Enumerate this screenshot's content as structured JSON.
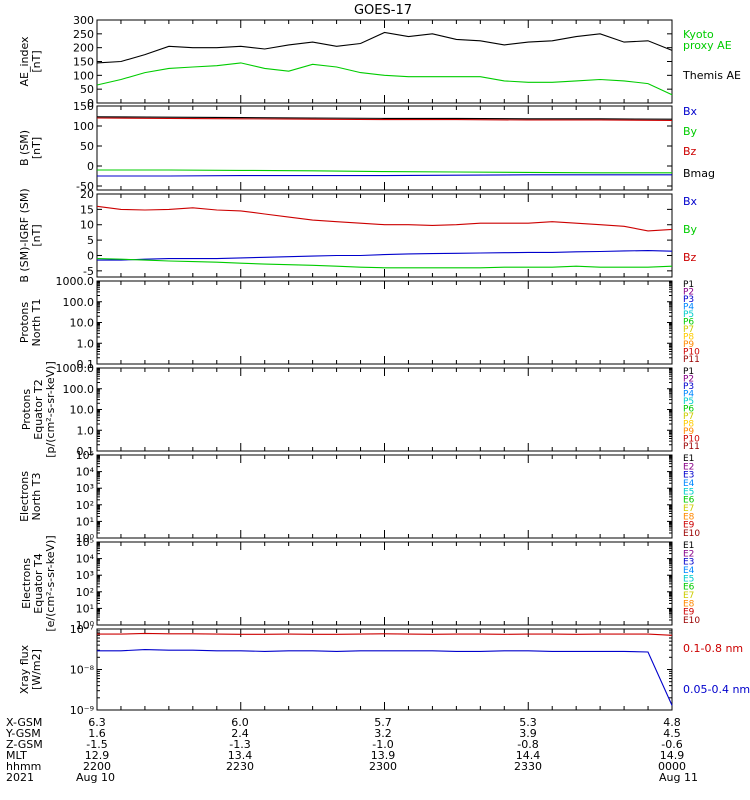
{
  "title": "GOES-17",
  "panels": [
    {
      "id": "ae",
      "ylabel": [
        "AE_index",
        "[nT]"
      ],
      "scale": "linear",
      "ylim": [
        0,
        300
      ],
      "ticks": [
        0,
        50,
        100,
        150,
        200,
        250,
        300
      ],
      "tick_labels": [
        "0",
        "50",
        "100",
        "150",
        "200",
        "250",
        "300"
      ],
      "legend": [
        {
          "text": "Kyoto",
          "color": "#00cc00"
        },
        {
          "text": "proxy AE",
          "color": "#00cc00"
        },
        {
          "text": "Themis AE",
          "color": "#000000"
        }
      ]
    },
    {
      "id": "bsm",
      "ylabel": [
        "B (SM)",
        "[nT]"
      ],
      "scale": "linear",
      "ylim": [
        -60,
        150
      ],
      "ticks": [
        -50,
        0,
        50,
        100,
        150
      ],
      "tick_labels": [
        "-50",
        "0",
        "50",
        "100",
        "150"
      ],
      "legend": [
        {
          "text": "Bx",
          "color": "#0000cc"
        },
        {
          "text": "By",
          "color": "#00cc00"
        },
        {
          "text": "Bz",
          "color": "#cc0000"
        },
        {
          "text": "Bmag",
          "color": "#000000"
        }
      ]
    },
    {
      "id": "bigrf",
      "ylabel": [
        "B (SM)-IGRF (SM)",
        "[nT]"
      ],
      "scale": "linear",
      "ylim": [
        -7,
        20
      ],
      "ticks": [
        -5,
        0,
        5,
        10,
        15,
        20
      ],
      "tick_labels": [
        "-5",
        "0",
        "5",
        "10",
        "15",
        "20"
      ],
      "legend": [
        {
          "text": "Bx",
          "color": "#0000cc"
        },
        {
          "text": "By",
          "color": "#00cc00"
        },
        {
          "text": "Bz",
          "color": "#cc0000"
        }
      ]
    },
    {
      "id": "protons_t1",
      "ylabel": [
        "Protons",
        "North T1"
      ],
      "scale": "log",
      "ylim": [
        0.1,
        1000
      ],
      "ticks": [
        0.1,
        1,
        10,
        100,
        1000
      ],
      "tick_labels": [
        "0.1",
        "1.0",
        "10.0",
        "100.0",
        "1000.0"
      ],
      "legend": [
        {
          "text": "P1",
          "color": "#000000"
        },
        {
          "text": "P2",
          "color": "#880088"
        },
        {
          "text": "P3",
          "color": "#0000cc"
        },
        {
          "text": "P4",
          "color": "#0088ff"
        },
        {
          "text": "P5",
          "color": "#00cccc"
        },
        {
          "text": "P6",
          "color": "#00cc00"
        },
        {
          "text": "P7",
          "color": "#cccc00"
        },
        {
          "text": "P8",
          "color": "#ffcc00"
        },
        {
          "text": "P9",
          "color": "#ff8800"
        },
        {
          "text": "P10",
          "color": "#cc0000"
        },
        {
          "text": "P11",
          "color": "#990000"
        }
      ]
    },
    {
      "id": "protons_t2",
      "ylabel": [
        "Protons",
        "Equator T2",
        "[p/(cm²-s-sr-keV)]"
      ],
      "scale": "log",
      "ylim": [
        0.1,
        1000
      ],
      "ticks": [
        0.1,
        1,
        10,
        100,
        1000
      ],
      "tick_labels": [
        "0.1",
        "1.0",
        "10.0",
        "100.0",
        "1000.0"
      ],
      "legend": [
        {
          "text": "P1",
          "color": "#000000"
        },
        {
          "text": "P2",
          "color": "#880088"
        },
        {
          "text": "P3",
          "color": "#0000cc"
        },
        {
          "text": "P4",
          "color": "#0088ff"
        },
        {
          "text": "P5",
          "color": "#00cccc"
        },
        {
          "text": "P6",
          "color": "#00cc00"
        },
        {
          "text": "P7",
          "color": "#cccc00"
        },
        {
          "text": "P8",
          "color": "#ffcc00"
        },
        {
          "text": "P9",
          "color": "#ff8800"
        },
        {
          "text": "P10",
          "color": "#cc0000"
        },
        {
          "text": "P11",
          "color": "#990000"
        }
      ]
    },
    {
      "id": "electrons_t3",
      "ylabel": [
        "Electrons",
        "North T3"
      ],
      "scale": "log",
      "ylim": [
        1,
        100000
      ],
      "ticks": [
        1,
        10,
        100,
        1000,
        10000,
        100000
      ],
      "tick_labels": [
        "10⁰",
        "10¹",
        "10²",
        "10³",
        "10⁴",
        "10⁵"
      ],
      "legend": [
        {
          "text": "E1",
          "color": "#000000"
        },
        {
          "text": "E2",
          "color": "#880088"
        },
        {
          "text": "E3",
          "color": "#0000cc"
        },
        {
          "text": "E4",
          "color": "#0088ff"
        },
        {
          "text": "E5",
          "color": "#00cccc"
        },
        {
          "text": "E6",
          "color": "#00cc00"
        },
        {
          "text": "E7",
          "color": "#cccc00"
        },
        {
          "text": "E8",
          "color": "#ff8800"
        },
        {
          "text": "E9",
          "color": "#cc0000"
        },
        {
          "text": "E10",
          "color": "#990000"
        }
      ]
    },
    {
      "id": "electrons_t4",
      "ylabel": [
        "Electrons",
        "Equator T4",
        "[e/(cm²-s-sr-keV)]"
      ],
      "scale": "log",
      "ylim": [
        1,
        100000
      ],
      "ticks": [
        1,
        10,
        100,
        1000,
        10000,
        100000
      ],
      "tick_labels": [
        "10⁰",
        "10¹",
        "10²",
        "10³",
        "10⁴",
        "10⁵"
      ],
      "legend": [
        {
          "text": "E1",
          "color": "#000000"
        },
        {
          "text": "E2",
          "color": "#880088"
        },
        {
          "text": "E3",
          "color": "#0000cc"
        },
        {
          "text": "E4",
          "color": "#0088ff"
        },
        {
          "text": "E5",
          "color": "#00cccc"
        },
        {
          "text": "E6",
          "color": "#00cc00"
        },
        {
          "text": "E7",
          "color": "#cccc00"
        },
        {
          "text": "E8",
          "color": "#ff8800"
        },
        {
          "text": "E9",
          "color": "#cc0000"
        },
        {
          "text": "E10",
          "color": "#990000"
        }
      ]
    },
    {
      "id": "xray",
      "ylabel": [
        "Xray flux",
        "[W/m2]"
      ],
      "scale": "log",
      "ylim": [
        1e-09,
        1e-07
      ],
      "ticks": [
        1e-09,
        1e-08,
        1e-07
      ],
      "tick_labels": [
        "10⁻⁹",
        "10⁻⁸",
        "10⁻⁷"
      ],
      "legend": [
        {
          "text": "0.1-0.8 nm",
          "color": "#cc0000"
        },
        {
          "text": "0.05-0.4 nm",
          "color": "#0000cc"
        }
      ]
    }
  ],
  "chart_data": [
    {
      "type": "line",
      "panel": "ae",
      "x": [
        "2200",
        "2205",
        "2210",
        "2215",
        "2220",
        "2225",
        "2230",
        "2235",
        "2240",
        "2245",
        "2250",
        "2255",
        "2300",
        "2305",
        "2310",
        "2315",
        "2320",
        "2325",
        "2330",
        "2335",
        "2340",
        "2345",
        "2350",
        "2355",
        "0000"
      ],
      "series": [
        {
          "name": "Themis AE",
          "color": "#000000",
          "values": [
            145,
            150,
            175,
            205,
            200,
            200,
            205,
            195,
            210,
            220,
            205,
            215,
            255,
            240,
            250,
            230,
            225,
            210,
            220,
            225,
            240,
            250,
            220,
            225,
            190
          ]
        },
        {
          "name": "Kyoto proxy AE",
          "color": "#00cc00",
          "values": [
            65,
            85,
            110,
            125,
            130,
            135,
            145,
            125,
            115,
            140,
            130,
            110,
            100,
            95,
            95,
            95,
            95,
            80,
            75,
            75,
            80,
            85,
            80,
            70,
            30
          ]
        }
      ]
    },
    {
      "type": "line",
      "panel": "bsm",
      "x": [
        "2200",
        "2215",
        "2230",
        "2245",
        "2300",
        "2315",
        "2330",
        "2345",
        "0000"
      ],
      "series": [
        {
          "name": "Bx",
          "color": "#0000cc",
          "values": [
            -25,
            -25,
            -24,
            -24,
            -24,
            -23,
            -22,
            -22,
            -22
          ]
        },
        {
          "name": "By",
          "color": "#00cc00",
          "values": [
            -10,
            -10,
            -11,
            -12,
            -14,
            -15,
            -16,
            -17,
            -17
          ]
        },
        {
          "name": "Bz",
          "color": "#cc0000",
          "values": [
            120,
            119,
            118,
            117,
            116,
            116,
            115,
            115,
            114
          ]
        },
        {
          "name": "Bmag",
          "color": "#000000",
          "values": [
            123,
            122,
            121,
            120,
            119,
            119,
            118,
            118,
            117
          ]
        }
      ]
    },
    {
      "type": "line",
      "panel": "bigrf",
      "x": [
        "2200",
        "2205",
        "2210",
        "2215",
        "2220",
        "2225",
        "2230",
        "2235",
        "2240",
        "2245",
        "2250",
        "2255",
        "2300",
        "2305",
        "2310",
        "2315",
        "2320",
        "2325",
        "2330",
        "2335",
        "2340",
        "2345",
        "2350",
        "2355",
        "0000"
      ],
      "series": [
        {
          "name": "Bx",
          "color": "#0000cc",
          "values": [
            -1.5,
            -1.5,
            -1.2,
            -1.0,
            -1.0,
            -1.0,
            -0.8,
            -0.6,
            -0.4,
            -0.2,
            0.0,
            0.0,
            0.3,
            0.5,
            0.6,
            0.7,
            0.8,
            0.9,
            1.0,
            1.0,
            1.2,
            1.3,
            1.5,
            1.6,
            1.4
          ]
        },
        {
          "name": "By",
          "color": "#00cc00",
          "values": [
            -1.0,
            -1.2,
            -1.5,
            -1.8,
            -2.0,
            -2.2,
            -2.5,
            -2.8,
            -3.0,
            -3.2,
            -3.5,
            -3.8,
            -4.0,
            -4.0,
            -4.0,
            -4.0,
            -4.0,
            -3.8,
            -3.8,
            -3.8,
            -3.5,
            -3.8,
            -3.8,
            -3.8,
            -3.5
          ]
        },
        {
          "name": "Bz",
          "color": "#cc0000",
          "values": [
            16.0,
            15.0,
            14.8,
            15.0,
            15.5,
            14.8,
            14.5,
            13.5,
            12.5,
            11.5,
            11.0,
            10.5,
            10.0,
            10.0,
            9.8,
            10.0,
            10.5,
            10.5,
            10.5,
            11.0,
            10.5,
            10.0,
            9.5,
            8.0,
            8.5
          ]
        }
      ]
    },
    {
      "type": "line",
      "panel": "xray",
      "x": [
        "2200",
        "2205",
        "2210",
        "2215",
        "2220",
        "2225",
        "2230",
        "2235",
        "2240",
        "2245",
        "2250",
        "2255",
        "2300",
        "2305",
        "2310",
        "2315",
        "2320",
        "2325",
        "2330",
        "2335",
        "2340",
        "2345",
        "2350",
        "2355",
        "0000"
      ],
      "series": [
        {
          "name": "0.1-0.8 nm",
          "color": "#cc0000",
          "values": [
            7.5e-08,
            7.5e-08,
            7.8e-08,
            7.6e-08,
            7.6e-08,
            7.5e-08,
            7.4e-08,
            7.4e-08,
            7.5e-08,
            7.4e-08,
            7.4e-08,
            7.5e-08,
            7.6e-08,
            7.5e-08,
            7.4e-08,
            7.5e-08,
            7.5e-08,
            7.4e-08,
            7.5e-08,
            7.5e-08,
            7.4e-08,
            7.5e-08,
            7.5e-08,
            7.5e-08,
            7e-08
          ]
        },
        {
          "name": "0.05-0.4 nm",
          "color": "#0000cc",
          "values": [
            2.9e-08,
            2.9e-08,
            3.1e-08,
            3e-08,
            3e-08,
            2.9e-08,
            2.9e-08,
            2.8e-08,
            2.9e-08,
            2.9e-08,
            2.8e-08,
            2.9e-08,
            2.9e-08,
            2.9e-08,
            2.9e-08,
            2.8e-08,
            2.8e-08,
            2.9e-08,
            2.9e-08,
            2.8e-08,
            2.8e-08,
            2.8e-08,
            2.8e-08,
            2.7e-08,
            1.3e-09
          ]
        }
      ]
    }
  ],
  "orbit": {
    "labels": [
      "X-GSM",
      "Y-GSM",
      "Z-GSM",
      "MLT",
      "hhmm",
      "2021"
    ],
    "columns": [
      [
        "6.3",
        "1.6",
        "-1.5",
        "12.9",
        "2200",
        "Aug 10"
      ],
      [
        "6.0",
        "2.4",
        "-1.3",
        "13.4",
        "2230",
        ""
      ],
      [
        "5.7",
        "3.2",
        "-1.0",
        "13.9",
        "2300",
        ""
      ],
      [
        "5.3",
        "3.9",
        "-0.8",
        "14.4",
        "2330",
        ""
      ],
      [
        "4.8",
        "4.5",
        "-0.6",
        "14.9",
        "0000",
        "Aug 11"
      ]
    ]
  }
}
